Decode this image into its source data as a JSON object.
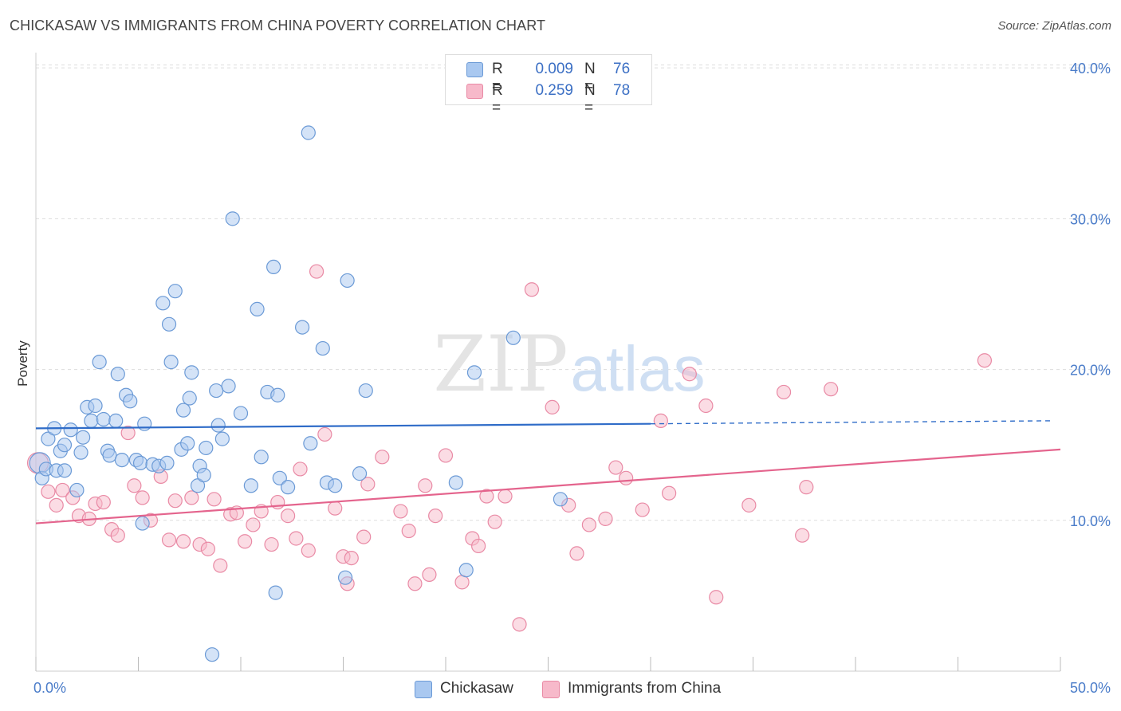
{
  "header": {
    "title": "CHICKASAW VS IMMIGRANTS FROM CHINA POVERTY CORRELATION CHART",
    "source": "Source: ZipAtlas.com"
  },
  "watermark": {
    "zip": "ZIP",
    "atlas": "atlas"
  },
  "legend": {
    "rows": [
      {
        "r_label": "R =",
        "r_value": "0.009",
        "n_label": "N =",
        "n_value": "76",
        "color": "#a9c8f0"
      },
      {
        "r_label": "R =",
        "r_value": "0.259",
        "n_label": "N =",
        "n_value": "78",
        "color": "#f7b9ca"
      }
    ]
  },
  "bottom_legend": [
    {
      "label": "Chickasaw",
      "color": "#a9c8f0"
    },
    {
      "label": "Immigrants from China",
      "color": "#f7b9ca"
    }
  ],
  "colors": {
    "blue_fill": "#a9c8f0",
    "blue_stroke": "#6b9ad6",
    "blue_line": "#2f6cc8",
    "pink_fill": "#f7b9ca",
    "pink_stroke": "#e98aa5",
    "pink_line": "#e4648d",
    "grid": "#dddddd",
    "tick_text": "#4a7cc9"
  },
  "chart_data": {
    "type": "scatter",
    "title": "CHICKASAW VS IMMIGRANTS FROM CHINA POVERTY CORRELATION CHART",
    "xlabel": "",
    "ylabel": "Poverty",
    "xlim": [
      0,
      50
    ],
    "ylim": [
      0,
      40.8
    ],
    "x_tick_labels": [
      "0.0%",
      "50.0%"
    ],
    "y_ticks": [
      10,
      20,
      30,
      40
    ],
    "y_tick_labels": [
      "10.0%",
      "20.0%",
      "30.0%",
      "40.0%"
    ],
    "grid": "horizontal-dashed",
    "series": [
      {
        "name": "Chickasaw",
        "r": 0.009,
        "n": 76,
        "trend": {
          "x0": 0,
          "y0": 16.1,
          "x1": 30.0,
          "y1": 16.4,
          "dash_to_x": 49.5,
          "dash_to_y": 16.6
        },
        "points": [
          [
            0.2,
            13.8
          ],
          [
            0.3,
            12.8
          ],
          [
            0.5,
            13.4
          ],
          [
            0.6,
            15.4
          ],
          [
            0.9,
            16.1
          ],
          [
            1.0,
            13.3
          ],
          [
            1.2,
            14.6
          ],
          [
            1.4,
            15.0
          ],
          [
            1.4,
            13.3
          ],
          [
            1.7,
            16.0
          ],
          [
            2.0,
            12.0
          ],
          [
            2.2,
            14.5
          ],
          [
            2.3,
            15.5
          ],
          [
            2.5,
            17.5
          ],
          [
            2.7,
            16.6
          ],
          [
            2.9,
            17.6
          ],
          [
            3.1,
            20.5
          ],
          [
            3.3,
            16.7
          ],
          [
            3.5,
            14.6
          ],
          [
            3.6,
            14.3
          ],
          [
            3.9,
            16.6
          ],
          [
            4.0,
            19.7
          ],
          [
            4.2,
            14.0
          ],
          [
            4.4,
            18.3
          ],
          [
            4.6,
            17.9
          ],
          [
            4.9,
            14.0
          ],
          [
            5.1,
            13.8
          ],
          [
            5.2,
            9.8
          ],
          [
            5.3,
            16.4
          ],
          [
            5.7,
            13.7
          ],
          [
            6.0,
            13.6
          ],
          [
            6.2,
            24.4
          ],
          [
            6.4,
            13.8
          ],
          [
            6.5,
            23.0
          ],
          [
            6.6,
            20.5
          ],
          [
            6.8,
            25.2
          ],
          [
            7.1,
            14.7
          ],
          [
            7.2,
            17.3
          ],
          [
            7.4,
            15.1
          ],
          [
            7.5,
            18.1
          ],
          [
            7.6,
            19.8
          ],
          [
            7.9,
            12.3
          ],
          [
            8.0,
            13.6
          ],
          [
            8.2,
            13.0
          ],
          [
            8.3,
            14.8
          ],
          [
            8.6,
            1.1
          ],
          [
            8.8,
            18.6
          ],
          [
            8.9,
            16.3
          ],
          [
            9.1,
            15.4
          ],
          [
            9.4,
            18.9
          ],
          [
            9.6,
            30.0
          ],
          [
            10.0,
            17.1
          ],
          [
            10.5,
            12.3
          ],
          [
            10.8,
            24.0
          ],
          [
            11.0,
            14.2
          ],
          [
            11.3,
            18.5
          ],
          [
            11.6,
            26.8
          ],
          [
            11.7,
            5.2
          ],
          [
            11.8,
            18.3
          ],
          [
            11.9,
            12.8
          ],
          [
            12.3,
            12.2
          ],
          [
            13.0,
            22.8
          ],
          [
            13.3,
            35.7
          ],
          [
            13.4,
            15.1
          ],
          [
            14.0,
            21.4
          ],
          [
            14.2,
            12.5
          ],
          [
            14.6,
            12.3
          ],
          [
            15.1,
            6.2
          ],
          [
            15.2,
            25.9
          ],
          [
            15.8,
            13.1
          ],
          [
            16.1,
            18.6
          ],
          [
            20.5,
            12.5
          ],
          [
            21.0,
            6.7
          ],
          [
            21.4,
            19.8
          ],
          [
            23.3,
            22.1
          ],
          [
            25.6,
            11.4
          ]
        ]
      },
      {
        "name": "Immigrants from China",
        "r": 0.259,
        "n": 78,
        "trend": {
          "x0": 0,
          "y0": 9.8,
          "x1": 50.0,
          "y1": 14.7
        },
        "points": [
          [
            0.1,
            13.8
          ],
          [
            0.6,
            11.9
          ],
          [
            1.0,
            11.0
          ],
          [
            1.3,
            12.0
          ],
          [
            1.8,
            11.5
          ],
          [
            2.1,
            10.3
          ],
          [
            2.6,
            10.1
          ],
          [
            2.9,
            11.1
          ],
          [
            3.3,
            11.2
          ],
          [
            3.7,
            9.4
          ],
          [
            4.0,
            9.0
          ],
          [
            4.5,
            15.8
          ],
          [
            4.8,
            12.3
          ],
          [
            5.2,
            11.5
          ],
          [
            5.6,
            10.0
          ],
          [
            6.1,
            12.9
          ],
          [
            6.5,
            8.7
          ],
          [
            6.8,
            11.3
          ],
          [
            7.2,
            8.6
          ],
          [
            7.6,
            11.5
          ],
          [
            8.0,
            8.4
          ],
          [
            8.4,
            8.1
          ],
          [
            8.7,
            11.4
          ],
          [
            9.0,
            7.0
          ],
          [
            9.5,
            10.4
          ],
          [
            9.8,
            10.5
          ],
          [
            10.2,
            8.6
          ],
          [
            10.6,
            9.7
          ],
          [
            11.0,
            10.6
          ],
          [
            11.5,
            8.4
          ],
          [
            11.8,
            11.2
          ],
          [
            12.3,
            10.3
          ],
          [
            12.7,
            8.8
          ],
          [
            12.9,
            13.4
          ],
          [
            13.3,
            8.0
          ],
          [
            13.7,
            26.5
          ],
          [
            14.1,
            15.7
          ],
          [
            14.6,
            10.8
          ],
          [
            15.0,
            7.6
          ],
          [
            15.2,
            5.8
          ],
          [
            15.4,
            7.5
          ],
          [
            16.0,
            8.9
          ],
          [
            16.2,
            12.4
          ],
          [
            16.9,
            14.2
          ],
          [
            17.8,
            10.6
          ],
          [
            18.2,
            9.3
          ],
          [
            18.5,
            5.8
          ],
          [
            19.0,
            12.3
          ],
          [
            19.2,
            6.4
          ],
          [
            19.5,
            10.3
          ],
          [
            20.0,
            14.3
          ],
          [
            20.8,
            5.9
          ],
          [
            21.3,
            8.8
          ],
          [
            21.6,
            8.3
          ],
          [
            22.0,
            11.6
          ],
          [
            22.4,
            9.9
          ],
          [
            22.9,
            11.6
          ],
          [
            23.6,
            3.1
          ],
          [
            24.2,
            25.3
          ],
          [
            25.2,
            17.5
          ],
          [
            26.0,
            11.0
          ],
          [
            26.4,
            7.8
          ],
          [
            27.0,
            9.7
          ],
          [
            27.8,
            10.1
          ],
          [
            28.3,
            13.5
          ],
          [
            28.8,
            12.8
          ],
          [
            29.6,
            10.7
          ],
          [
            30.5,
            16.6
          ],
          [
            30.9,
            11.8
          ],
          [
            31.9,
            19.7
          ],
          [
            32.7,
            17.6
          ],
          [
            33.2,
            4.9
          ],
          [
            34.8,
            11.0
          ],
          [
            36.5,
            18.5
          ],
          [
            37.4,
            9.0
          ],
          [
            37.6,
            12.2
          ],
          [
            38.8,
            18.7
          ],
          [
            46.3,
            20.6
          ]
        ]
      }
    ]
  }
}
